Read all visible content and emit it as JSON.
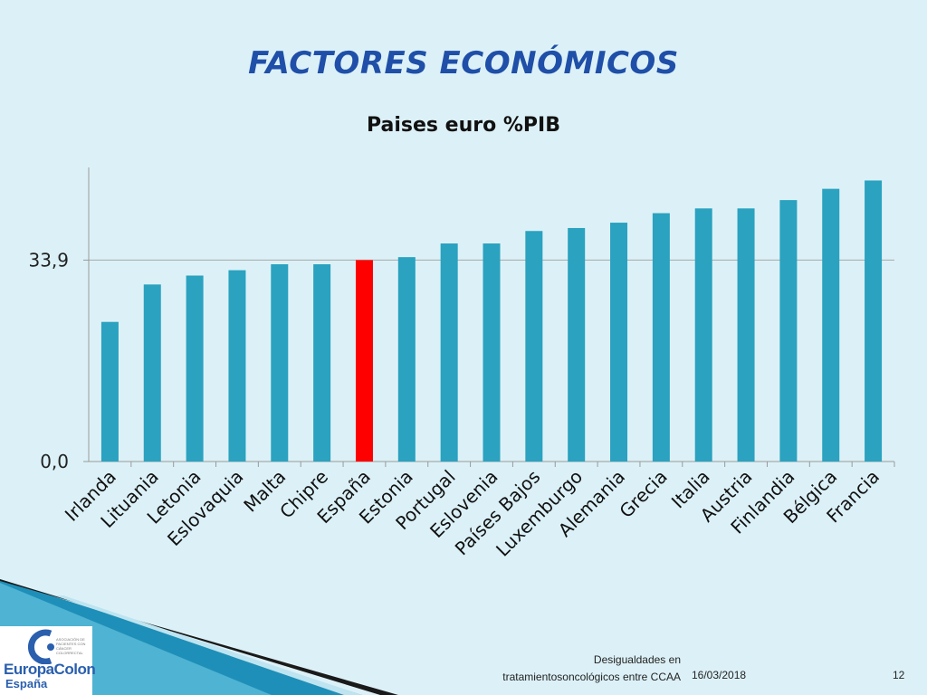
{
  "slide": {
    "title": "FACTORES ECONÓMICOS",
    "footer_line1": "Desigualdades en",
    "footer_line2": "tratamientosoncológicos entre CCAA",
    "date": "16/03/2018",
    "page": "12"
  },
  "logo": {
    "name": "EuropaColon",
    "sub": "España",
    "tagline": "ASOCIACIÓN DE PACIENTES CON CÁNCER COLORRECTAL"
  },
  "chart_data": {
    "type": "bar",
    "title": "Paises euro %PIB",
    "xlabel": "",
    "ylabel": "",
    "categories": [
      "Irlanda",
      "Lituania",
      "Letonia",
      "Eslovaquia",
      "Malta",
      "Chipre",
      "España",
      "Estonia",
      "Portugal",
      "Eslovenia",
      "Países Bajos",
      "Luxemburgo",
      "Alemania",
      "Grecia",
      "Italia",
      "Austria",
      "Finlandia",
      "Bélgica",
      "Francia"
    ],
    "values": [
      23.5,
      29.8,
      31.3,
      32.2,
      33.2,
      33.2,
      33.9,
      34.4,
      36.7,
      36.7,
      38.8,
      39.3,
      40.2,
      41.8,
      42.6,
      42.6,
      44.0,
      45.9,
      47.3
    ],
    "highlight_category": "España",
    "y_tick_labels": [
      "0,0",
      "33,9"
    ],
    "y_tick_values": [
      0,
      33.9
    ],
    "ylim": [
      0,
      49.5
    ],
    "grid": true,
    "colors": {
      "bar": "#2aa2c0",
      "highlight": "#ff0000",
      "grid": "#a8a8a8"
    }
  }
}
